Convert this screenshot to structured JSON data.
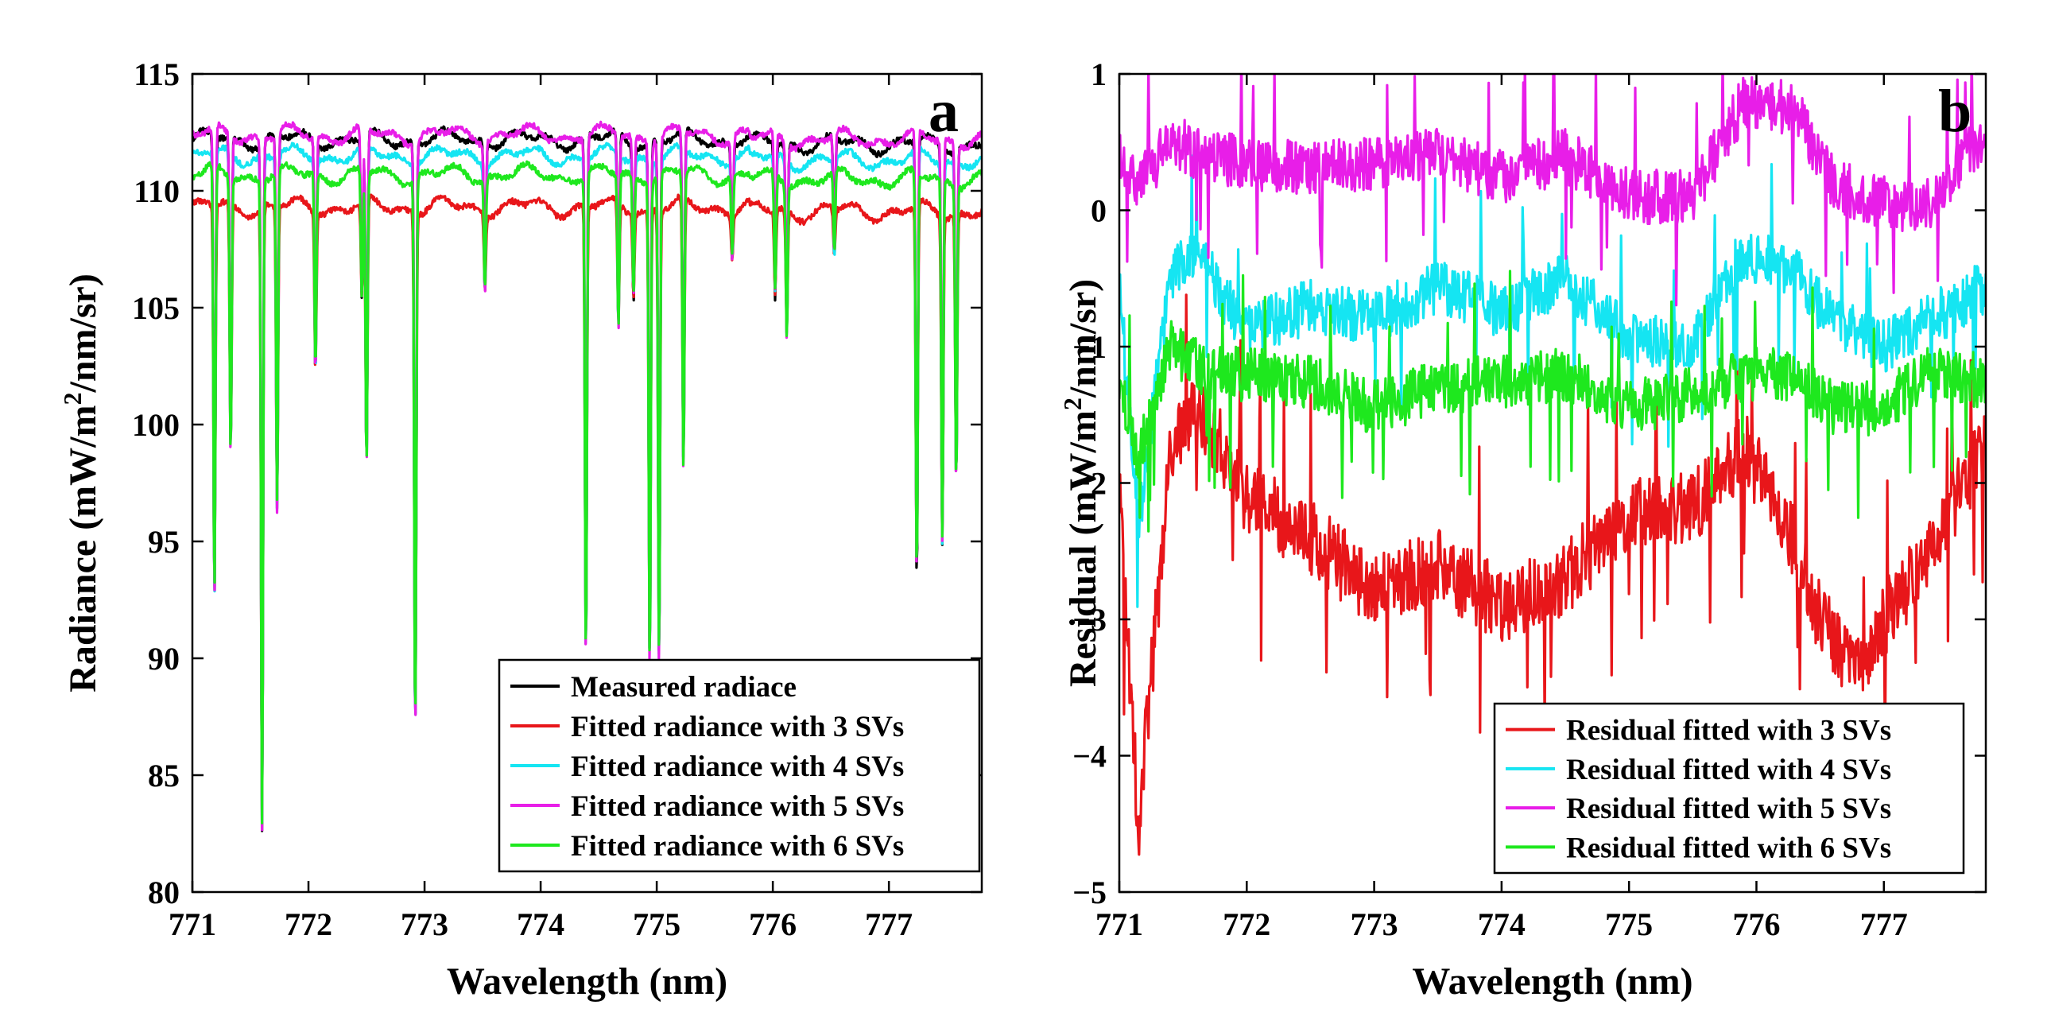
{
  "chart_data": [
    {
      "type": "line",
      "panel_label": "a",
      "xlabel": "Wavelength (nm)",
      "ylabel": {
        "pre": "Radiance (mW/m",
        "sup": "2",
        "post": "/nm/sr)"
      },
      "xlim": [
        771,
        777.8
      ],
      "ylim": [
        80,
        115
      ],
      "xticks": [
        771,
        772,
        773,
        774,
        775,
        776,
        777
      ],
      "yticks": [
        80,
        85,
        90,
        95,
        100,
        105,
        110,
        115
      ],
      "grid": false,
      "legend_position": "bottom-right",
      "series": [
        {
          "name": "Measured radiace",
          "color": "#000000",
          "baseline": 112.2
        },
        {
          "name": "Fitted radiance with 3 SVs",
          "color": "#e8161a",
          "baseline": 109.3
        },
        {
          "name": "Fitted radiance with 4 SVs",
          "color": "#15e5f2",
          "baseline": 111.5
        },
        {
          "name": "Fitted radiance with 5 SVs",
          "color": "#e81ee8",
          "baseline": 112.4
        },
        {
          "name": "Fitted radiance with 6 SVs",
          "color": "#1ee81e",
          "baseline": 110.7
        }
      ],
      "absorption_lines": [
        {
          "x": 771.19,
          "y": 92.3
        },
        {
          "x": 771.33,
          "y": 98.7
        },
        {
          "x": 771.6,
          "y": 82.8
        },
        {
          "x": 771.73,
          "y": 96.3
        },
        {
          "x": 772.06,
          "y": 102.3
        },
        {
          "x": 772.46,
          "y": 105.2
        },
        {
          "x": 772.5,
          "y": 97.9
        },
        {
          "x": 772.92,
          "y": 86.8
        },
        {
          "x": 773.52,
          "y": 106.0
        },
        {
          "x": 774.39,
          "y": 89.9
        },
        {
          "x": 774.67,
          "y": 104.1
        },
        {
          "x": 774.8,
          "y": 105.6
        },
        {
          "x": 774.94,
          "y": 89.7
        },
        {
          "x": 775.02,
          "y": 89.8
        },
        {
          "x": 775.23,
          "y": 97.9
        },
        {
          "x": 775.65,
          "y": 107.3
        },
        {
          "x": 776.02,
          "y": 105.6
        },
        {
          "x": 776.12,
          "y": 104.0
        },
        {
          "x": 776.53,
          "y": 107.2
        },
        {
          "x": 777.24,
          "y": 93.2
        },
        {
          "x": 777.46,
          "y": 95.2
        },
        {
          "x": 777.58,
          "y": 97.9
        }
      ]
    },
    {
      "type": "line",
      "panel_label": "b",
      "xlabel": "Wavelength (nm)",
      "ylabel": {
        "pre": "Residual (mW/m",
        "sup": "2",
        "post": "/nm/sr)"
      },
      "xlim": [
        771,
        777.8
      ],
      "ylim": [
        -5,
        1
      ],
      "xticks": [
        771,
        772,
        773,
        774,
        775,
        776,
        777
      ],
      "yticks": [
        -5,
        -4,
        -3,
        -2,
        -1,
        0,
        1
      ],
      "ytick_labels": [
        "−5",
        "−4",
        "−3",
        "−2",
        "−1",
        "0",
        "1"
      ],
      "grid": false,
      "legend_position": "bottom-right",
      "series": [
        {
          "name": "Residual fitted with 3 SVs",
          "color": "#e8161a",
          "trend": [
            [
              771,
              -2.1
            ],
            [
              771.15,
              -4.5
            ],
            [
              771.4,
              -1.8
            ],
            [
              771.6,
              -1.4
            ],
            [
              772,
              -2.1
            ],
            [
              772.5,
              -2.4
            ],
            [
              773,
              -2.8
            ],
            [
              773.5,
              -2.6
            ],
            [
              774,
              -2.9
            ],
            [
              774.5,
              -2.7
            ],
            [
              775,
              -2.2
            ],
            [
              775.5,
              -2.2
            ],
            [
              775.9,
              -1.75
            ],
            [
              776.2,
              -2.2
            ],
            [
              776.5,
              -3.0
            ],
            [
              776.8,
              -3.4
            ],
            [
              777.0,
              -3.0
            ],
            [
              777.3,
              -2.6
            ],
            [
              777.8,
              -1.7
            ]
          ]
        },
        {
          "name": "Residual fitted with 4 SVs",
          "color": "#15e5f2",
          "trend": [
            [
              771,
              -0.55
            ],
            [
              771.15,
              -2.3
            ],
            [
              771.4,
              -0.5
            ],
            [
              771.6,
              -0.3
            ],
            [
              772,
              -0.9
            ],
            [
              772.5,
              -0.7
            ],
            [
              773,
              -0.8
            ],
            [
              773.5,
              -0.55
            ],
            [
              774,
              -0.75
            ],
            [
              774.5,
              -0.5
            ],
            [
              775,
              -0.95
            ],
            [
              775.5,
              -1.0
            ],
            [
              775.9,
              -0.3
            ],
            [
              776.3,
              -0.45
            ],
            [
              776.6,
              -0.8
            ],
            [
              777,
              -1.0
            ],
            [
              777.3,
              -0.85
            ],
            [
              777.8,
              -0.55
            ]
          ]
        },
        {
          "name": "Residual fitted with 5 SVs",
          "color": "#e81ee8",
          "trend": [
            [
              771,
              0.45
            ],
            [
              771.15,
              0.2
            ],
            [
              771.4,
              0.5
            ],
            [
              771.7,
              0.4
            ],
            [
              772,
              0.35
            ],
            [
              772.5,
              0.3
            ],
            [
              773,
              0.35
            ],
            [
              773.5,
              0.4
            ],
            [
              774,
              0.25
            ],
            [
              774.5,
              0.4
            ],
            [
              775,
              0.1
            ],
            [
              775.5,
              0.1
            ],
            [
              775.9,
              0.8
            ],
            [
              776.3,
              0.75
            ],
            [
              776.6,
              0.2
            ],
            [
              777,
              0.05
            ],
            [
              777.3,
              0.0
            ],
            [
              777.8,
              0.55
            ]
          ]
        },
        {
          "name": "Residual fitted with 6 SVs",
          "color": "#1ee81e",
          "trend": [
            [
              771,
              -1.3
            ],
            [
              771.15,
              -1.8
            ],
            [
              771.4,
              -1.0
            ],
            [
              771.7,
              -1.2
            ],
            [
              772,
              -1.2
            ],
            [
              772.5,
              -1.25
            ],
            [
              773,
              -1.45
            ],
            [
              773.5,
              -1.3
            ],
            [
              774,
              -1.25
            ],
            [
              774.5,
              -1.2
            ],
            [
              775,
              -1.45
            ],
            [
              775.5,
              -1.35
            ],
            [
              775.9,
              -1.2
            ],
            [
              776.3,
              -1.2
            ],
            [
              776.6,
              -1.45
            ],
            [
              777,
              -1.45
            ],
            [
              777.3,
              -1.2
            ],
            [
              777.8,
              -1.25
            ]
          ]
        }
      ]
    }
  ]
}
